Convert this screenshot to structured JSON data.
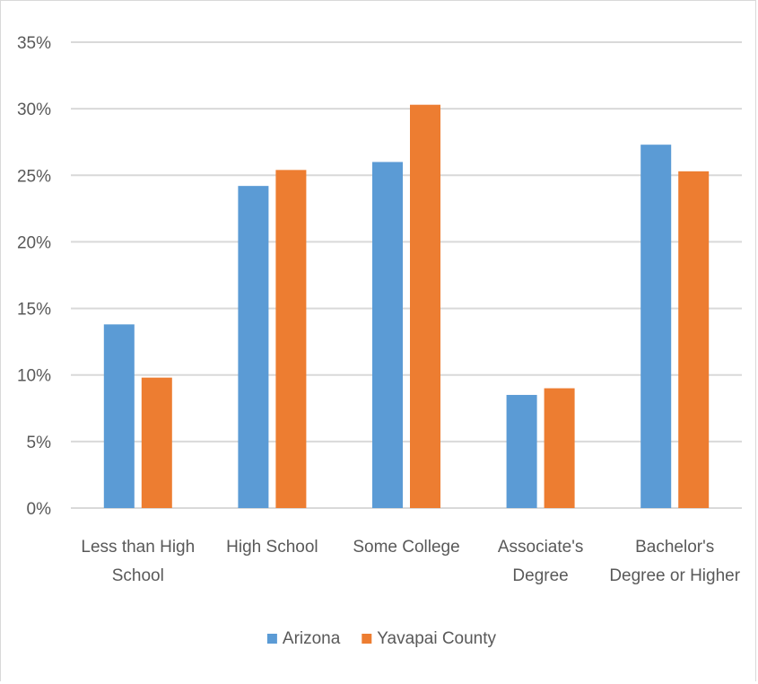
{
  "chart_data": {
    "type": "bar",
    "title": "",
    "xlabel": "",
    "ylabel": "",
    "categories": [
      [
        "Less than High",
        "School"
      ],
      [
        "High School"
      ],
      [
        "Some College"
      ],
      [
        "Associate's",
        "Degree"
      ],
      [
        "Bachelor's",
        "Degree or Higher"
      ]
    ],
    "series": [
      {
        "name": "Arizona",
        "color": "#5b9bd5",
        "values": [
          13.8,
          24.2,
          26.0,
          8.5,
          27.3
        ]
      },
      {
        "name": "Yavapai County",
        "color": "#ed7d31",
        "values": [
          9.8,
          25.4,
          30.3,
          9.0,
          25.3
        ]
      }
    ],
    "ylim": [
      0,
      35
    ],
    "yticks": [
      0,
      5,
      10,
      15,
      20,
      25,
      30,
      35
    ],
    "ytick_labels": [
      "0%",
      "5%",
      "10%",
      "15%",
      "20%",
      "25%",
      "30%",
      "35%"
    ],
    "grid": true,
    "gridline_color": "#d9d9d9",
    "legend_position": "bottom"
  }
}
